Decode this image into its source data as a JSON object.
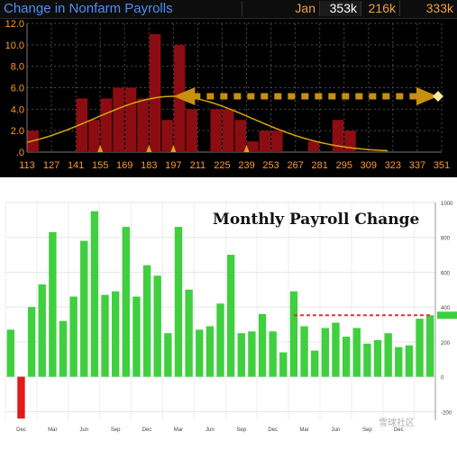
{
  "top_panel": {
    "title": "Change in Nonfarm Payrolls",
    "month": "Jan",
    "actual": "353k",
    "consensus": "216k",
    "prior": "333k"
  },
  "bottom_panel": {
    "title": "Monthly Payroll Change",
    "watermark": "雪球社区"
  },
  "colors": {
    "histogram_bar": "#8b0d12",
    "normal_curve": "#d9a410",
    "arrow": "#c8900f",
    "top_axis_text": "#ff9a2e",
    "bottom_bar_positive": "#3fcf3f",
    "bottom_bar_negative": "#e11b1b",
    "reference_line": "#e33030",
    "last_value_tag": "#3fcf3f"
  },
  "chart_data": [
    {
      "type": "bar",
      "title": "Change in Nonfarm Payrolls",
      "x_ticks": [
        "113",
        "127",
        "141",
        "155",
        "169",
        "183",
        "197",
        "211",
        "225",
        "239",
        "253",
        "267",
        "281",
        "295",
        "309",
        "323",
        "337",
        "351"
      ],
      "x_range": [
        113,
        351
      ],
      "bin_width": 7,
      "y_ticks": [
        "12.0",
        "10.0",
        "8.0",
        "6.0",
        "4.0",
        "2.0",
        ".0"
      ],
      "ylim": [
        0,
        12
      ],
      "bins": [
        {
          "x": 113,
          "count": 2
        },
        {
          "x": 120,
          "count": 0
        },
        {
          "x": 127,
          "count": 0
        },
        {
          "x": 134,
          "count": 0
        },
        {
          "x": 141,
          "count": 5
        },
        {
          "x": 148,
          "count": 3
        },
        {
          "x": 155,
          "count": 5
        },
        {
          "x": 162,
          "count": 6
        },
        {
          "x": 169,
          "count": 6
        },
        {
          "x": 176,
          "count": 5
        },
        {
          "x": 183,
          "count": 11
        },
        {
          "x": 190,
          "count": 3
        },
        {
          "x": 197,
          "count": 10
        },
        {
          "x": 204,
          "count": 4
        },
        {
          "x": 211,
          "count": 0
        },
        {
          "x": 218,
          "count": 4
        },
        {
          "x": 225,
          "count": 4
        },
        {
          "x": 232,
          "count": 3
        },
        {
          "x": 239,
          "count": 1
        },
        {
          "x": 246,
          "count": 2
        },
        {
          "x": 253,
          "count": 2
        },
        {
          "x": 260,
          "count": 0
        },
        {
          "x": 267,
          "count": 0
        },
        {
          "x": 274,
          "count": 1
        },
        {
          "x": 281,
          "count": 0
        },
        {
          "x": 288,
          "count": 3
        },
        {
          "x": 295,
          "count": 2
        },
        {
          "x": 302,
          "count": 0
        }
      ],
      "normal_curve": {
        "mean": 197,
        "sd": 45,
        "peak": 5.2
      },
      "markers_x": [
        155,
        183,
        197,
        239
      ],
      "arrow": {
        "from_x": 197,
        "to_x": 351,
        "y": 5.2
      }
    },
    {
      "type": "bar",
      "title": "Monthly Payroll Change",
      "ylim": [
        -250,
        1000
      ],
      "y_ticks": [
        "1000",
        "800",
        "600",
        "400",
        "200",
        "0",
        "-200"
      ],
      "x_tick_labels": [
        "Dec",
        "Mar",
        "Jun",
        "Sep",
        "Dec",
        "Mar",
        "Jun",
        "Sep",
        "Dec",
        "Mar",
        "Jun",
        "Sep",
        "Dec"
      ],
      "values": [
        270,
        -240,
        400,
        530,
        830,
        320,
        460,
        780,
        950,
        470,
        490,
        860,
        460,
        640,
        580,
        250,
        860,
        500,
        270,
        290,
        420,
        700,
        250,
        260,
        360,
        260,
        140,
        490,
        290,
        150,
        280,
        310,
        230,
        280,
        190,
        210,
        250,
        170,
        180,
        333,
        353
      ],
      "last_value": 353,
      "reference_line_value": 353
    }
  ]
}
